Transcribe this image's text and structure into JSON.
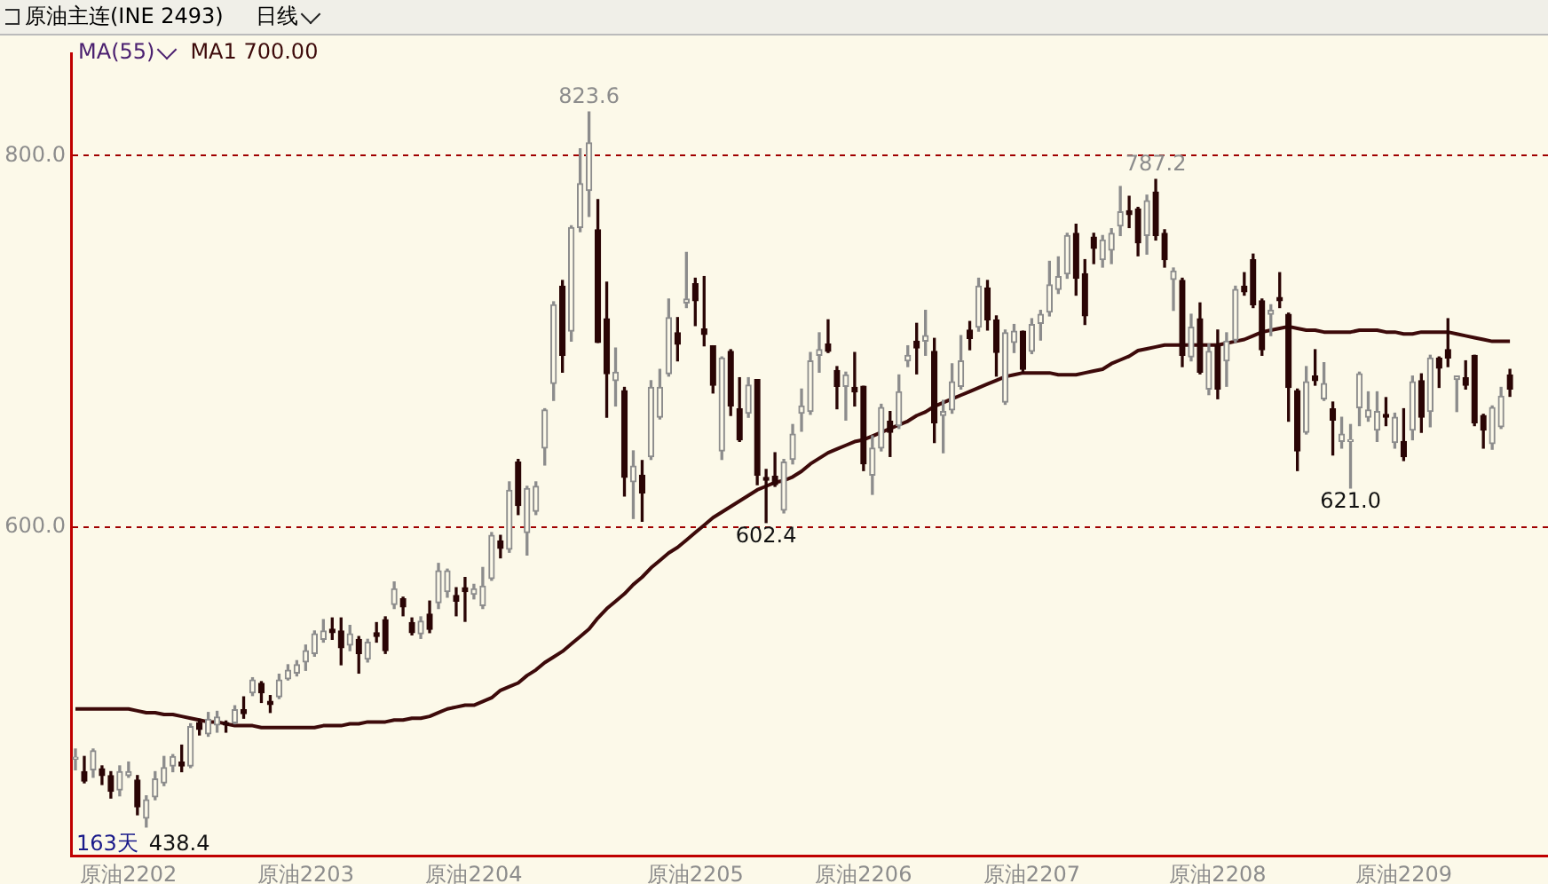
{
  "chart_data": {
    "type": "candlestick",
    "title": "原油主连(INE 2493)",
    "subtitle": "日线",
    "legend_title": "MA(55)",
    "categories": [
      null,
      null,
      null,
      null,
      null,
      null,
      "原油2202",
      null,
      null,
      null,
      null,
      null,
      null,
      null,
      null,
      null,
      null,
      null,
      null,
      null,
      null,
      null,
      null,
      null,
      null,
      null,
      "原油2203",
      null,
      null,
      null,
      null,
      null,
      null,
      null,
      null,
      null,
      null,
      null,
      null,
      null,
      null,
      null,
      null,
      null,
      null,
      "原油2204",
      null,
      null,
      null,
      null,
      null,
      null,
      null,
      null,
      null,
      null,
      null,
      null,
      null,
      null,
      null,
      null,
      null,
      null,
      null,
      null,
      null,
      null,
      null,
      null,
      "原油2205",
      null,
      null,
      null,
      null,
      null,
      null,
      null,
      null,
      null,
      null,
      null,
      null,
      null,
      null,
      null,
      null,
      null,
      null,
      "原油2206",
      null,
      null,
      null,
      null,
      null,
      null,
      null,
      null,
      null,
      null,
      null,
      null,
      null,
      null,
      null,
      null,
      null,
      null,
      "原油2207",
      null,
      null,
      null,
      null,
      null,
      null,
      null,
      null,
      null,
      null,
      null,
      null,
      null,
      null,
      null,
      null,
      null,
      null,
      null,
      null,
      "原油2208",
      null,
      null,
      null,
      null,
      null,
      null,
      null,
      null,
      null,
      null,
      null,
      null,
      null,
      null,
      null,
      null,
      null,
      null,
      null,
      null,
      "原油2209",
      null,
      null,
      null,
      null,
      null,
      null,
      null,
      null,
      null,
      null,
      null,
      null
    ],
    "series": [
      {
        "ohlc": [
          [
            475,
            480.4,
            469.2,
            476
          ],
          [
            468.2,
            476.4,
            462.2,
            463.1
          ],
          [
            469.2,
            480.4,
            465.2,
            479.5
          ],
          [
            469.8,
            471.3,
            461.3,
            466.1
          ],
          [
            466.1,
            468.2,
            454,
            457.6
          ],
          [
            458.3,
            471.3,
            455.2,
            468.2
          ],
          [
            466.1,
            473.4,
            465.2,
            468.2
          ],
          [
            463.7,
            466.1,
            445,
            449.2
          ],
          [
            443.1,
            455.2,
            438.4,
            453.1
          ],
          [
            454.6,
            468.2,
            453.1,
            464.3
          ],
          [
            462.2,
            476.4,
            460.7,
            470.4
          ],
          [
            471.3,
            477.4,
            468.2,
            476.4
          ],
          [
            473.4,
            482.5,
            468.2,
            471.3
          ],
          [
            471.3,
            494,
            470.4,
            492.5
          ],
          [
            494.6,
            496.4,
            488,
            491
          ],
          [
            488.6,
            500.1,
            487.3,
            496.4
          ],
          [
            493.4,
            500.7,
            489.5,
            497.6
          ],
          [
            494.6,
            495.5,
            489.5,
            493.4
          ],
          [
            494.6,
            503.7,
            494,
            501.6
          ],
          [
            501.6,
            508.5,
            497,
            499.5
          ],
          [
            510.7,
            518.8,
            509.2,
            517.6
          ],
          [
            515.8,
            516.7,
            505.5,
            510.7
          ],
          [
            506.1,
            509.2,
            500.1,
            504.3
          ],
          [
            508.5,
            520.7,
            507.6,
            517.6
          ],
          [
            518.2,
            525.8,
            517.6,
            522.8
          ],
          [
            521.3,
            528,
            519.8,
            525.8
          ],
          [
            527.3,
            536.4,
            522.8,
            533.4
          ],
          [
            531.9,
            544,
            530.4,
            542.5
          ],
          [
            539.5,
            550.1,
            538,
            544
          ],
          [
            544.9,
            551,
            539.5,
            543.1
          ],
          [
            544,
            551,
            525.8,
            534.9
          ],
          [
            536.4,
            547,
            533.4,
            542.5
          ],
          [
            539.5,
            541,
            521.3,
            531.9
          ],
          [
            528.8,
            539.5,
            527.3,
            537.9
          ],
          [
            543.1,
            548.5,
            538,
            541
          ],
          [
            550.1,
            551.6,
            531.9,
            533.4
          ],
          [
            558.3,
            570.4,
            556.1,
            566.7
          ],
          [
            561.3,
            562.2,
            552.2,
            557
          ],
          [
            548.5,
            551,
            541.9,
            543.1
          ],
          [
            542.5,
            551.6,
            540,
            549.2
          ],
          [
            553.1,
            560.1,
            543.1,
            544.9
          ],
          [
            559.2,
            580.4,
            556.1,
            576.4
          ],
          [
            565.2,
            577.3,
            562.2,
            576.4
          ],
          [
            563.1,
            567.3,
            552.2,
            560.1
          ],
          [
            567.3,
            572.8,
            549.2,
            565.2
          ],
          [
            563.7,
            569.1,
            561.3,
            566.7
          ],
          [
            557.6,
            578.2,
            556.1,
            568.2
          ],
          [
            572.2,
            597,
            571.3,
            595.5
          ],
          [
            592.5,
            595.5,
            583.4,
            588.5
          ],
          [
            588,
            624.3,
            586.4,
            619.8
          ],
          [
            634.9,
            636.4,
            606.7,
            611.6
          ],
          [
            597,
            621.9,
            584.9,
            620.7
          ],
          [
            608.5,
            624.3,
            606.7,
            621.9
          ],
          [
            642.5,
            663.7,
            633.4,
            663.1
          ],
          [
            677.3,
            721.3,
            668.2,
            719.7
          ],
          [
            729.7,
            732.8,
            683.4,
            692.5
          ],
          [
            705.5,
            762.2,
            700.1,
            761.3
          ],
          [
            761.3,
            803.7,
            759.1,
            784.9
          ],
          [
            781.3,
            823.6,
            767.3,
            807
          ],
          [
            760.1,
            776.4,
            699.4,
            699.4
          ],
          [
            712.2,
            731.9,
            659.1,
            682.5
          ],
          [
            678.8,
            696.4,
            665.2,
            683.4
          ],
          [
            673.4,
            675.2,
            616.7,
            626.7
          ],
          [
            624.3,
            641,
            604.6,
            632.8
          ],
          [
            627.9,
            635.8,
            603.1,
            618.2
          ],
          [
            637.9,
            678.8,
            636.4,
            675.2
          ],
          [
            659.1,
            684.9,
            658.2,
            675.2
          ],
          [
            682.5,
            722.8,
            681.3,
            712.8
          ],
          [
            704.6,
            712.8,
            689.5,
            698.5
          ],
          [
            720.7,
            747.9,
            718.2,
            722.8
          ],
          [
            731,
            734,
            708.5,
            721.9
          ],
          [
            706.7,
            734.9,
            697.6,
            703.7
          ],
          [
            697.6,
            697.6,
            672.2,
            676.4
          ],
          [
            641,
            691.6,
            636.4,
            691
          ],
          [
            694.6,
            695.5,
            660.1,
            665.2
          ],
          [
            663.7,
            680.4,
            646.1,
            647
          ],
          [
            661.3,
            680.4,
            659.1,
            676.4
          ],
          [
            679.4,
            679.4,
            622.8,
            627.9
          ],
          [
            626.7,
            631,
            602.4,
            625.2
          ],
          [
            627.3,
            640,
            621.9,
            622.8
          ],
          [
            609.1,
            636.4,
            607.6,
            634.9
          ],
          [
            636.4,
            655.2,
            634,
            650
          ],
          [
            661.3,
            674.3,
            651.6,
            665.2
          ],
          [
            662.2,
            694,
            660.7,
            689.5
          ],
          [
            692.5,
            704.6,
            683.4,
            695.5
          ],
          [
            698.5,
            711.6,
            694,
            694.6
          ],
          [
            684.3,
            686.4,
            663.7,
            675.8
          ],
          [
            675.8,
            683.4,
            657.6,
            681.9
          ],
          [
            675.2,
            694,
            665.2,
            672.8
          ],
          [
            675.8,
            675.8,
            630.4,
            634
          ],
          [
            627.9,
            649.1,
            617.6,
            642.5
          ],
          [
            642.5,
            666.1,
            641,
            664.3
          ],
          [
            657,
            662.2,
            638,
            651
          ],
          [
            654.6,
            681.9,
            653.1,
            672.8
          ],
          [
            689.5,
            697.6,
            686.4,
            692.5
          ],
          [
            700.1,
            709.7,
            682.5,
            696.4
          ],
          [
            700.1,
            716.7,
            692.5,
            703.1
          ],
          [
            694.6,
            701.6,
            645.5,
            656.1
          ],
          [
            660.1,
            668.2,
            640,
            662.2
          ],
          [
            663.1,
            687.9,
            661.3,
            678.2
          ],
          [
            675.8,
            703.1,
            674.3,
            689.5
          ],
          [
            706.1,
            710.7,
            695.5,
            701.6
          ],
          [
            707.6,
            734,
            705.5,
            729.7
          ],
          [
            728.8,
            732.8,
            706.1,
            711.6
          ],
          [
            711.6,
            713.7,
            681.3,
            694
          ],
          [
            667.3,
            706.1,
            666.1,
            704.6
          ],
          [
            699.4,
            709.1,
            694,
            705.5
          ],
          [
            705.5,
            705.5,
            683.4,
            684.9
          ],
          [
            694.6,
            712.2,
            693.4,
            709.1
          ],
          [
            709.7,
            716.7,
            700.7,
            714.6
          ],
          [
            715.8,
            743.1,
            713.7,
            730.4
          ],
          [
            728,
            745.5,
            725.8,
            734.9
          ],
          [
            736.4,
            758.2,
            734,
            757
          ],
          [
            758.2,
            763.1,
            724.9,
            734
          ],
          [
            736.4,
            744,
            709.1,
            713.7
          ],
          [
            756.1,
            758.2,
            741.9,
            750.1
          ],
          [
            744,
            757,
            740,
            754.6
          ],
          [
            749.1,
            760.7,
            741.9,
            758.2
          ],
          [
            762.2,
            783.4,
            757,
            769.8
          ],
          [
            770.4,
            778.2,
            761.3,
            768.2
          ],
          [
            771.3,
            772.2,
            746.1,
            753.1
          ],
          [
            757,
            778.8,
            747,
            775.8
          ],
          [
            780.4,
            787.2,
            754.6,
            757
          ],
          [
            758.2,
            760.1,
            740,
            744
          ],
          [
            733.4,
            739.5,
            716.7,
            737.9
          ],
          [
            732.8,
            734,
            686.4,
            692.5
          ],
          [
            691.6,
            714.6,
            689.5,
            707.6
          ],
          [
            712.2,
            720.7,
            682.5,
            683.4
          ],
          [
            674.3,
            698.5,
            671.3,
            694.6
          ],
          [
            697.6,
            706.1,
            669.1,
            674.3
          ],
          [
            689.5,
            704.6,
            675.8,
            700.1
          ],
          [
            700.7,
            729.7,
            699.4,
            728
          ],
          [
            729.7,
            737,
            724.9,
            726.7
          ],
          [
            744,
            747,
            718.2,
            719.7
          ],
          [
            721.9,
            722.8,
            692.5,
            695.5
          ],
          [
            714.6,
            719.7,
            703.1,
            716.7
          ],
          [
            723.7,
            737,
            718.2,
            721.9
          ],
          [
            714.6,
            715.2,
            657,
            675.2
          ],
          [
            673.4,
            674.3,
            630.4,
            641
          ],
          [
            651,
            686.4,
            650.1,
            678.2
          ],
          [
            681.3,
            695.5,
            676.4,
            678.8
          ],
          [
            669.1,
            688.5,
            668.2,
            677.3
          ],
          [
            663.7,
            667.3,
            638.8,
            657.6
          ],
          [
            646.1,
            659.1,
            642.5,
            650
          ],
          [
            646.1,
            655.2,
            621,
            647
          ],
          [
            664.3,
            683.4,
            654.6,
            682.5
          ],
          [
            659.1,
            672.8,
            657,
            663.1
          ],
          [
            652.2,
            672.8,
            646.1,
            662.2
          ],
          [
            660.7,
            669.7,
            654.6,
            659.1
          ],
          [
            645.5,
            661.3,
            642.5,
            659.1
          ],
          [
            646.1,
            663.7,
            635.8,
            637.9
          ],
          [
            652.2,
            681.3,
            647,
            678.2
          ],
          [
            678.8,
            682.5,
            651,
            659.1
          ],
          [
            662.2,
            692.5,
            654,
            691
          ],
          [
            691,
            691.6,
            675.2,
            685.5
          ],
          [
            695.5,
            712.2,
            686.4,
            691
          ],
          [
            679.4,
            681.3,
            662.2,
            681.3
          ],
          [
            680.4,
            689.5,
            674.3,
            676.4
          ],
          [
            692.5,
            692.5,
            654.6,
            656.1
          ],
          [
            660.1,
            660.7,
            642.5,
            652.2
          ],
          [
            644.9,
            665.2,
            641.9,
            664.3
          ],
          [
            654,
            675.2,
            653.1,
            670.4
          ],
          [
            681.9,
            684.9,
            670.4,
            674.3
          ]
        ]
      },
      {
        "name": "MA1 700.00",
        "type": "line",
        "color": "#3d0a0a",
        "values": [
          502,
          502,
          502,
          502,
          502,
          502,
          502,
          501,
          500,
          500,
          499,
          499,
          498,
          497,
          496,
          495,
          495,
          494,
          493,
          493,
          493,
          492,
          492,
          492,
          492,
          492,
          492,
          492,
          493,
          493,
          493,
          494,
          494,
          495,
          495,
          495,
          496,
          496,
          497,
          497,
          498,
          500,
          502,
          503,
          504,
          504,
          506,
          508,
          512,
          514,
          516,
          520,
          523,
          527,
          530,
          533,
          537,
          541,
          545,
          551,
          556,
          560,
          564,
          569,
          573,
          578,
          582,
          586,
          589,
          593,
          597,
          601,
          605,
          608,
          611,
          614,
          617,
          620,
          622,
          624,
          625,
          627,
          630,
          634,
          637,
          640,
          642,
          644,
          646,
          647,
          649,
          651,
          653,
          655,
          657,
          660,
          662,
          665,
          667,
          669,
          671,
          673,
          675,
          677,
          679,
          681,
          682,
          683,
          683,
          683,
          683,
          682,
          682,
          682,
          683,
          684,
          685,
          688,
          690,
          692,
          695,
          696,
          697,
          698,
          698,
          698,
          698,
          698,
          698,
          698,
          699,
          700,
          701,
          703,
          705,
          706,
          707,
          708,
          707,
          706,
          706,
          705,
          705,
          705,
          705,
          706,
          706,
          706,
          705,
          705,
          704,
          704,
          705,
          705,
          705,
          705,
          704,
          703,
          702,
          701,
          700,
          700,
          700
        ]
      }
    ],
    "ylim": [
      423,
      855
    ],
    "yticks": [
      {
        "value": 600,
        "label": "600.0"
      },
      {
        "value": 800,
        "label": "800.0"
      }
    ],
    "grid": "y",
    "annotations": [
      {
        "text": "823.6",
        "y": 823.6
      },
      {
        "text": "787.2",
        "y": 787.2
      },
      {
        "text": "602.4",
        "y": 602.4
      },
      {
        "text": "621.0",
        "y": 621
      },
      "163天",
      "438.4"
    ]
  }
}
